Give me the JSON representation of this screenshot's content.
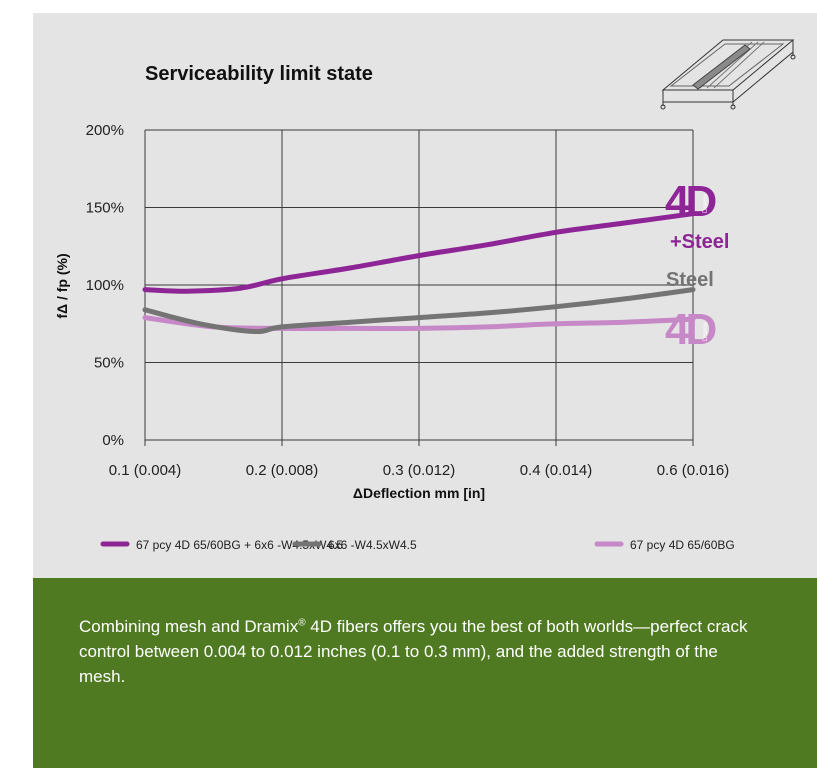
{
  "chart_data": {
    "type": "line",
    "title": "Serviceability limit state",
    "xlabel": "ΔDeflection mm [in]",
    "ylabel": "fΔ / fp (%)",
    "categories": [
      "0.1 (0.004)",
      "0.2 (0.008)",
      "0.3 (0.012)",
      "0.4 (0.014)",
      "0.6 (0.016)"
    ],
    "yticks": [
      "0%",
      "50%",
      "100%",
      "150%",
      "200%"
    ],
    "ylim": [
      0,
      200
    ],
    "grid": true,
    "legend_position": "bottom",
    "series": [
      {
        "name": "67 pcy 4D 65/60BG + 6x6 -W4.5xW4.5",
        "color": "#8e2596",
        "points": [
          [
            0,
            97
          ],
          [
            0.3,
            96
          ],
          [
            0.7,
            98
          ],
          [
            1.0,
            104
          ],
          [
            1.5,
            111
          ],
          [
            2.0,
            119
          ],
          [
            2.5,
            126
          ],
          [
            3.0,
            134
          ],
          [
            3.5,
            140
          ],
          [
            4.0,
            146
          ]
        ]
      },
      {
        "name": "6x6 -W4.5xW4.5",
        "color": "#747474",
        "points": [
          [
            0,
            84
          ],
          [
            0.4,
            75
          ],
          [
            0.8,
            70
          ],
          [
            1.0,
            73
          ],
          [
            1.5,
            76
          ],
          [
            2.0,
            79
          ],
          [
            2.5,
            82
          ],
          [
            3.0,
            86
          ],
          [
            3.5,
            91
          ],
          [
            4.0,
            97
          ]
        ]
      },
      {
        "name": "67 pcy 4D 65/60BG",
        "color": "#c688c6",
        "points": [
          [
            0,
            79
          ],
          [
            0.5,
            73
          ],
          [
            1.0,
            72
          ],
          [
            1.5,
            72
          ],
          [
            2.0,
            72
          ],
          [
            2.5,
            73
          ],
          [
            3.0,
            75
          ],
          [
            3.5,
            76
          ],
          [
            4.0,
            78
          ]
        ]
      }
    ],
    "labels": {
      "combo_logo": "4D",
      "combo_suffix": "+Steel",
      "steel": "Steel",
      "fiber_logo": "4D",
      "brand": "Dramix"
    }
  },
  "caption": {
    "part1": "Combining mesh and Dramix",
    "reg": "®",
    "part2": " 4D fibers offers you the best of both worlds—perfect crack control between  0.004 to 0.012 inches (0.1 to 0.3 mm), and the added strength of the mesh."
  },
  "colors": {
    "panel": "#e4e4e4",
    "footer": "#4f7a22",
    "combo": "#8e2596",
    "steel": "#747474",
    "fiber": "#c688c6"
  }
}
